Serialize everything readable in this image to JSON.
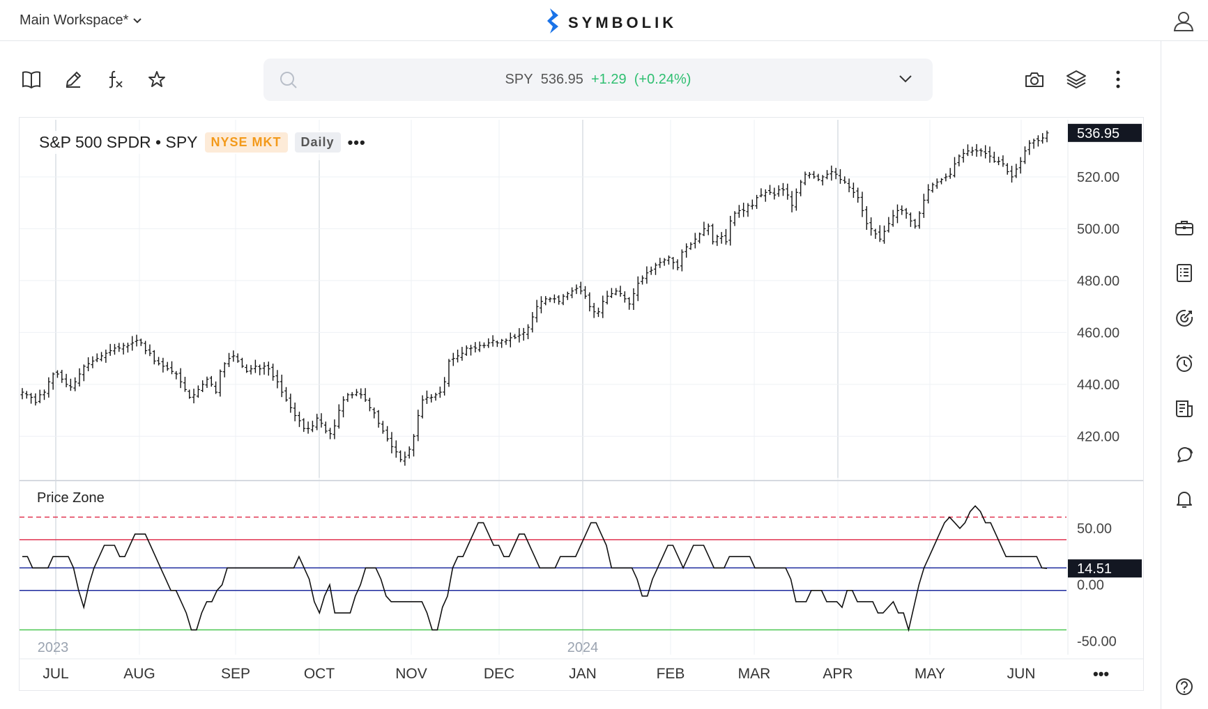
{
  "header": {
    "workspace_label": "Main Workspace*",
    "brand": "SYMBOLIK"
  },
  "quote": {
    "symbol": "SPY",
    "price": "536.95",
    "change": "+1.29",
    "change_pct": "(+0.24%)"
  },
  "chart_header": {
    "title": "S&P 500 SPDR • SPY",
    "exchange": "NYSE MKT",
    "interval": "Daily",
    "more": "•••"
  },
  "indicator": {
    "title": "Price Zone"
  },
  "more_label": "•••",
  "colors": {
    "accent_blue": "#1a73e8",
    "up_green": "#2fbf71",
    "exchange_orange": "#f39a1b",
    "zone_red": "#e0334f",
    "zone_blue": "#1c2a9e",
    "zone_green": "#4cc752"
  },
  "icons": {
    "toolbar": [
      "book-icon",
      "pencil-icon",
      "fx-icon",
      "star-icon"
    ],
    "toolbar_right": [
      "camera-icon",
      "layers-icon",
      "more-vertical-icon"
    ],
    "rail": [
      "briefcase-icon",
      "list-icon",
      "target-icon",
      "alarm-icon",
      "news-icon",
      "chat-icon",
      "bell-icon",
      "help-icon"
    ]
  },
  "chart_data": [
    {
      "type": "ohlc",
      "title": "S&P 500 SPDR • SPY",
      "x_labels": [
        "JUL",
        "AUG",
        "SEP",
        "OCT",
        "NOV",
        "DEC",
        "JAN",
        "FEB",
        "MAR",
        "APR",
        "MAY",
        "JUN"
      ],
      "year_labels": [
        "2023",
        "2024"
      ],
      "y_ticks": [
        "520.00",
        "500.00",
        "480.00",
        "460.00",
        "440.00",
        "420.00"
      ],
      "ylim": [
        404,
        542
      ],
      "last_price": "536.95",
      "series_daily_close": [
        437,
        436,
        435,
        433,
        436,
        437,
        441,
        444,
        444,
        442,
        440,
        439,
        441,
        444,
        447,
        448,
        449,
        450,
        451,
        452,
        453,
        454,
        454,
        455,
        455,
        456,
        457,
        456,
        453,
        452,
        449,
        448,
        447,
        446,
        445,
        444,
        441,
        438,
        435,
        436,
        438,
        440,
        442,
        440,
        437,
        445,
        448,
        450,
        451,
        449,
        447,
        445,
        446,
        447,
        446,
        447,
        446,
        443,
        441,
        437,
        434,
        431,
        428,
        426,
        423,
        423,
        424,
        427,
        425,
        422,
        421,
        424,
        430,
        434,
        436,
        436,
        437,
        436,
        434,
        431,
        429,
        425,
        422,
        419,
        416,
        414,
        411,
        412,
        415,
        420,
        428,
        434,
        435,
        435,
        436,
        437,
        441,
        449,
        450,
        451,
        452,
        454,
        454,
        454,
        455,
        455,
        456,
        457,
        456,
        457,
        457,
        458,
        458,
        459,
        460,
        462,
        466,
        470,
        472,
        473,
        473,
        473,
        472,
        474,
        475,
        476,
        477,
        476,
        474,
        470,
        468,
        468,
        472,
        474,
        475,
        476,
        475,
        473,
        471,
        475,
        479,
        481,
        483,
        484,
        486,
        487,
        488,
        489,
        487,
        485,
        491,
        493,
        494,
        496,
        498,
        500,
        501,
        495,
        497,
        497,
        495,
        503,
        506,
        507,
        507,
        509,
        509,
        512,
        513,
        514,
        514,
        513,
        515,
        515,
        513,
        509,
        514,
        518,
        521,
        521,
        520,
        519,
        520,
        521,
        522,
        521,
        519,
        518,
        516,
        514,
        512,
        507,
        502,
        500,
        498,
        496,
        499,
        502,
        505,
        507,
        507,
        506,
        503,
        501,
        506,
        511,
        515,
        517,
        518,
        519,
        520,
        521,
        525,
        528,
        529,
        530,
        530,
        530,
        530,
        529,
        528,
        526,
        526,
        525,
        522,
        520,
        523,
        526,
        530,
        533,
        534,
        534,
        535,
        536.95
      ]
    },
    {
      "type": "line",
      "title": "Price Zone",
      "y_ticks": [
        "50.00",
        "0.00",
        "-50.00"
      ],
      "ylim": [
        -62,
        90
      ],
      "levels": {
        "upper_dashed": 60,
        "upper": 40,
        "mid_upper": 15,
        "lower": -5,
        "lower_green": -40
      },
      "last_value": "14.51",
      "values": [
        25,
        25,
        15,
        15,
        15,
        15,
        25,
        25,
        25,
        25,
        15,
        -5,
        -20,
        0,
        15,
        25,
        35,
        35,
        35,
        25,
        25,
        35,
        45,
        45,
        45,
        35,
        25,
        15,
        5,
        -5,
        -5,
        -15,
        -25,
        -40,
        -40,
        -25,
        -15,
        -15,
        -5,
        0,
        15,
        15,
        15,
        15,
        15,
        15,
        15,
        15,
        15,
        15,
        15,
        15,
        15,
        15,
        25,
        15,
        5,
        -15,
        -25,
        -10,
        0,
        -25,
        -25,
        -25,
        -25,
        -10,
        0,
        15,
        15,
        15,
        5,
        -10,
        -15,
        -15,
        -15,
        -15,
        -15,
        -15,
        -15,
        -25,
        -40,
        -40,
        -20,
        -10,
        15,
        25,
        25,
        35,
        45,
        55,
        55,
        45,
        35,
        35,
        25,
        25,
        35,
        45,
        45,
        35,
        25,
        15,
        15,
        15,
        15,
        25,
        25,
        25,
        25,
        35,
        45,
        55,
        55,
        45,
        35,
        15,
        15,
        15,
        15,
        15,
        5,
        -10,
        -10,
        5,
        15,
        25,
        35,
        35,
        25,
        15,
        25,
        35,
        35,
        35,
        25,
        15,
        15,
        15,
        25,
        25,
        25,
        25,
        25,
        15,
        15,
        15,
        15,
        15,
        15,
        15,
        5,
        -15,
        -15,
        -15,
        -5,
        -5,
        -5,
        -15,
        -15,
        -15,
        -20,
        -5,
        -5,
        -15,
        -15,
        -15,
        -15,
        -25,
        -25,
        -20,
        -15,
        -25,
        -25,
        -40,
        -20,
        0,
        15,
        25,
        35,
        45,
        55,
        60,
        55,
        50,
        55,
        65,
        70,
        65,
        55,
        55,
        45,
        35,
        25,
        25,
        25,
        25,
        25,
        25,
        25,
        15,
        14.51
      ]
    }
  ]
}
